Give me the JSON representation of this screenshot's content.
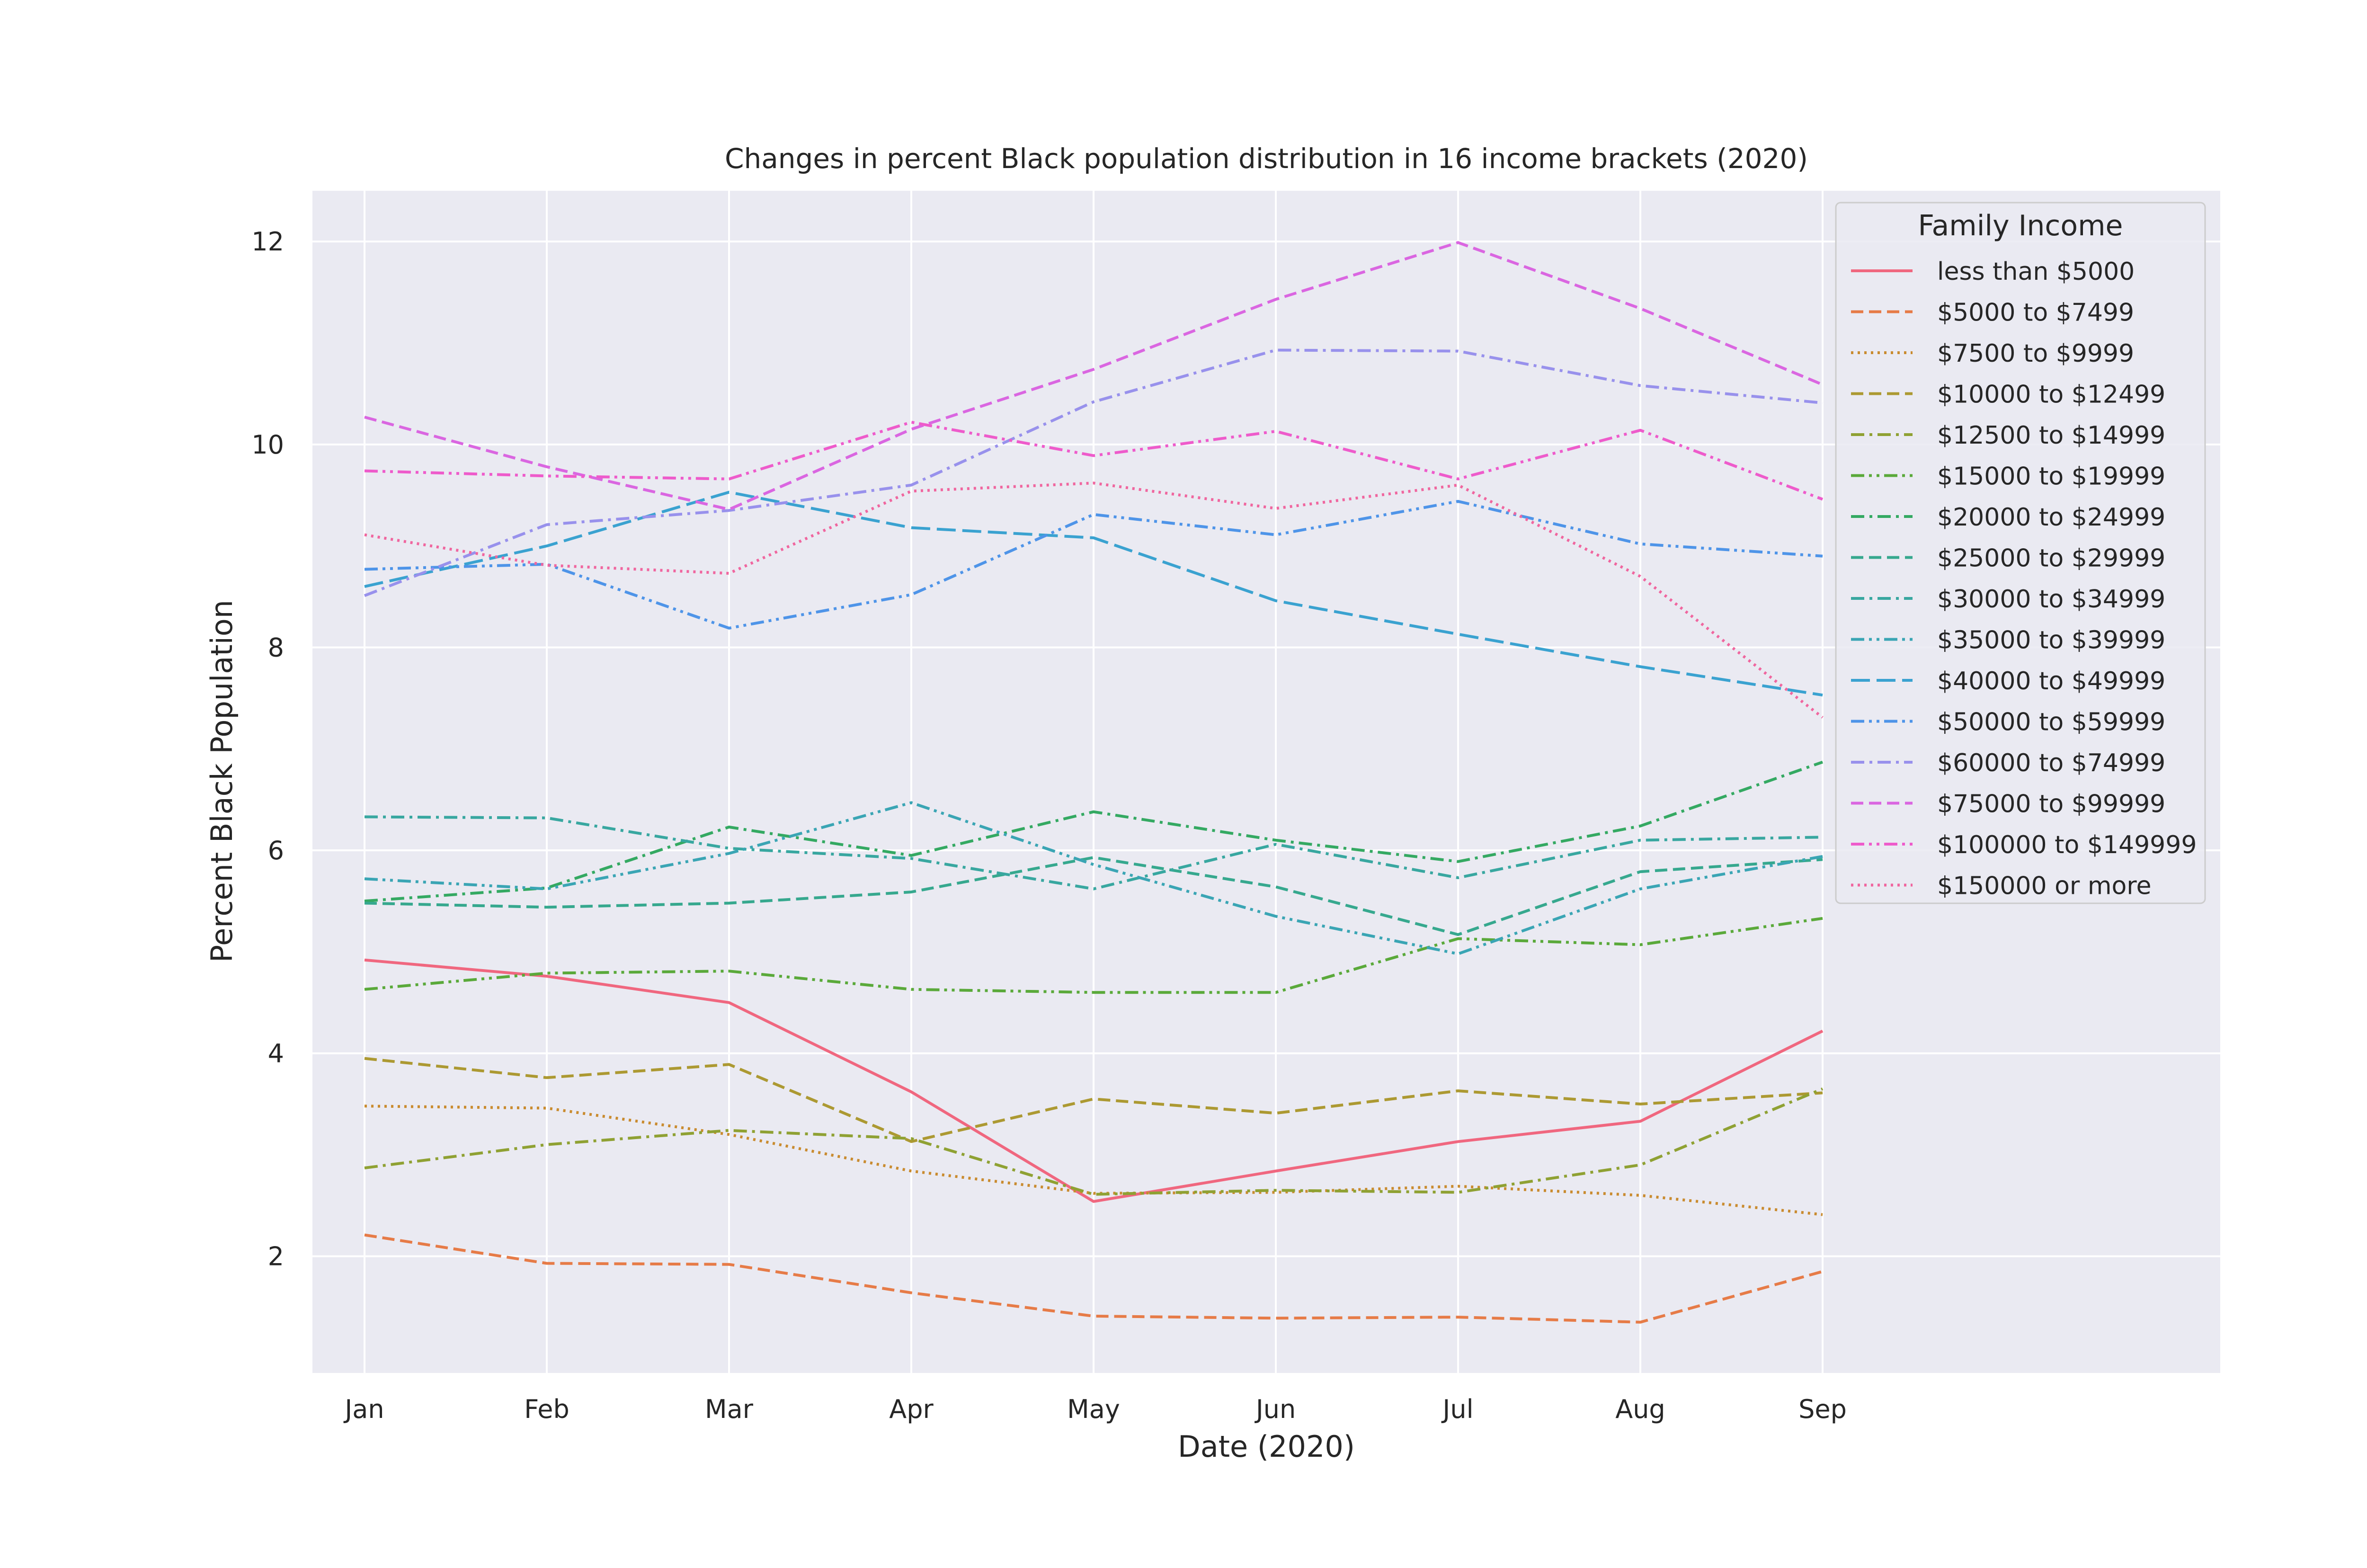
{
  "chart_data": {
    "type": "line",
    "title": "Changes in percent Black population distribution in 16 income brackets (2020)",
    "xlabel": "Date (2020)",
    "ylabel": "Percent Black Population",
    "categories": [
      "Jan",
      "Feb",
      "Mar",
      "Apr",
      "May",
      "Jun",
      "Jul",
      "Aug",
      "Sep"
    ],
    "yticks": [
      2,
      4,
      6,
      8,
      10,
      12
    ],
    "ylim": [
      0.85,
      12.5
    ],
    "grid": true,
    "legend_title": "Family Income",
    "legend_position": "upper right",
    "series": [
      {
        "name": "less than $5000",
        "color": "#f0677f",
        "dash": "solid",
        "values": [
          4.92,
          4.76,
          4.5,
          3.62,
          2.54,
          2.84,
          3.13,
          3.33,
          4.22
        ]
      },
      {
        "name": "$5000 to $7499",
        "color": "#e67b47",
        "dash": "dashed",
        "values": [
          2.21,
          1.93,
          1.92,
          1.64,
          1.41,
          1.39,
          1.4,
          1.35,
          1.85
        ]
      },
      {
        "name": "$7500 to $9999",
        "color": "#c98b2f",
        "dash": "dotted",
        "values": [
          3.48,
          3.46,
          3.2,
          2.84,
          2.62,
          2.63,
          2.69,
          2.6,
          2.41
        ]
      },
      {
        "name": "$10000 to $12499",
        "color": "#ac9932",
        "dash": "dashed",
        "values": [
          3.95,
          3.76,
          3.89,
          3.13,
          3.55,
          3.41,
          3.63,
          3.5,
          3.61
        ]
      },
      {
        "name": "$12500 to $14999",
        "color": "#8fa133",
        "dash": "dashdot",
        "values": [
          2.87,
          3.1,
          3.24,
          3.16,
          2.61,
          2.65,
          2.63,
          2.9,
          3.65
        ]
      },
      {
        "name": "$15000 to $19999",
        "color": "#5aa93a",
        "dash": "dashdot2",
        "values": [
          4.63,
          4.79,
          4.81,
          4.63,
          4.6,
          4.6,
          5.13,
          5.07,
          5.33
        ]
      },
      {
        "name": "$20000 to $24999",
        "color": "#34a962",
        "dash": "dashdot",
        "values": [
          5.5,
          5.63,
          6.23,
          5.95,
          6.38,
          6.1,
          5.89,
          6.24,
          6.87
        ]
      },
      {
        "name": "$25000 to $29999",
        "color": "#36a88e",
        "dash": "dashed",
        "values": [
          5.48,
          5.44,
          5.48,
          5.59,
          5.93,
          5.64,
          5.17,
          5.79,
          5.91
        ]
      },
      {
        "name": "$30000 to $34999",
        "color": "#38a7a0",
        "dash": "dashdot",
        "values": [
          6.33,
          6.32,
          6.02,
          5.92,
          5.62,
          6.06,
          5.73,
          6.1,
          6.13
        ]
      },
      {
        "name": "$35000 to $39999",
        "color": "#3aa5b4",
        "dash": "dashdot2",
        "values": [
          5.72,
          5.62,
          5.97,
          6.47,
          5.86,
          5.35,
          4.98,
          5.62,
          5.94
        ]
      },
      {
        "name": "$40000 to $49999",
        "color": "#3aa2d0",
        "dash": "longdash",
        "values": [
          8.6,
          9.0,
          9.53,
          9.18,
          9.08,
          8.46,
          8.13,
          7.81,
          7.53
        ]
      },
      {
        "name": "$50000 to $59999",
        "color": "#4e94e8",
        "dash": "dashdot2",
        "values": [
          8.77,
          8.82,
          8.19,
          8.52,
          9.31,
          9.11,
          9.44,
          9.02,
          8.9
        ]
      },
      {
        "name": "$60000 to $74999",
        "color": "#9891ec",
        "dash": "dashdot",
        "values": [
          8.51,
          9.21,
          9.35,
          9.6,
          10.42,
          10.93,
          10.92,
          10.58,
          10.41
        ]
      },
      {
        "name": "$75000 to $99999",
        "color": "#da66e1",
        "dash": "dashed",
        "values": [
          10.27,
          9.78,
          9.36,
          10.15,
          10.74,
          11.43,
          11.99,
          11.34,
          10.59
        ]
      },
      {
        "name": "$100000 to $149999",
        "color": "#ee5bcb",
        "dash": "dashdot2",
        "values": [
          9.74,
          9.69,
          9.66,
          10.22,
          9.89,
          10.13,
          9.66,
          10.14,
          9.46
        ]
      },
      {
        "name": "$150000 or more",
        "color": "#f0669f",
        "dash": "dotted",
        "values": [
          9.11,
          8.81,
          8.73,
          9.54,
          9.62,
          9.37,
          9.6,
          8.7,
          7.31
        ]
      }
    ]
  }
}
